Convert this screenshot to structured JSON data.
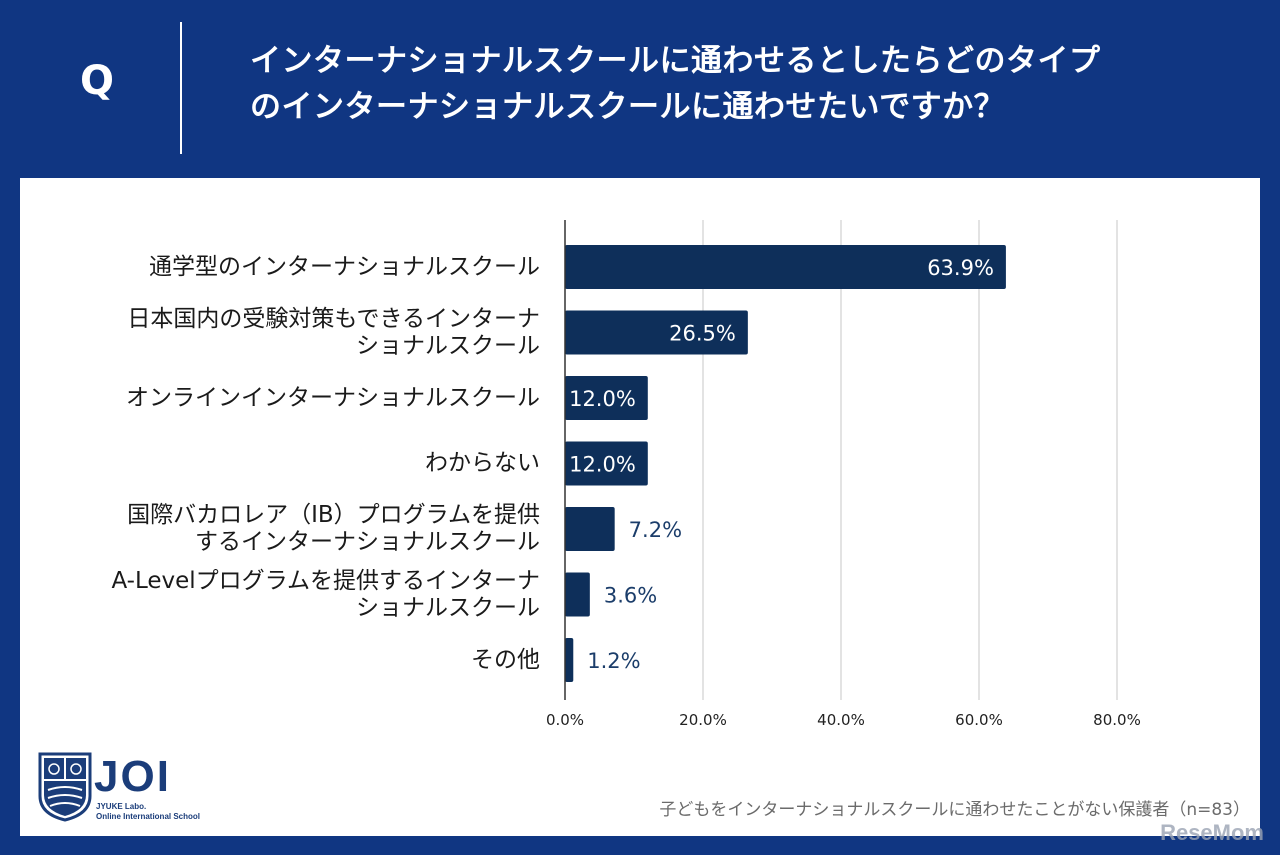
{
  "header": {
    "q_mark": "Q",
    "question_line1": "インターナショナルスクールに通わせるとしたらどのタイプ",
    "question_line2": "のインターナショナルスクールに通わせたいですか？"
  },
  "chart_data": {
    "type": "bar",
    "orientation": "horizontal",
    "categories": [
      [
        "通学型のインターナショナルスクール"
      ],
      [
        "日本国内の受験対策もできるインターナ",
        "ショナルスクール"
      ],
      [
        "オンラインインターナショナルスクール"
      ],
      [
        "わからない"
      ],
      [
        "国際バカロレア（IB）プログラムを提供",
        "するインターナショナルスクール"
      ],
      [
        "A-Levelプログラムを提供するインターナ",
        "ショナルスクール"
      ],
      [
        "その他"
      ]
    ],
    "values": [
      63.9,
      26.5,
      12.0,
      12.0,
      7.2,
      3.6,
      1.2
    ],
    "value_labels": [
      "63.9%",
      "26.5%",
      "12.0%",
      "12.0%",
      "7.2%",
      "3.6%",
      "1.2%"
    ],
    "xlim": [
      0,
      80
    ],
    "x_ticks": [
      "0.0%",
      "20.0%",
      "40.0%",
      "60.0%",
      "80.0%"
    ],
    "grid": true,
    "bar_color": "#0e2f5a"
  },
  "footer": {
    "logo_word": "JOI",
    "logo_sub1": "JYUKE Labo.",
    "logo_sub2": "Online International School",
    "note": "子どもをインターナショナルスクールに通わせたことがない保護者（n=83）",
    "watermark": "ReseMom"
  }
}
